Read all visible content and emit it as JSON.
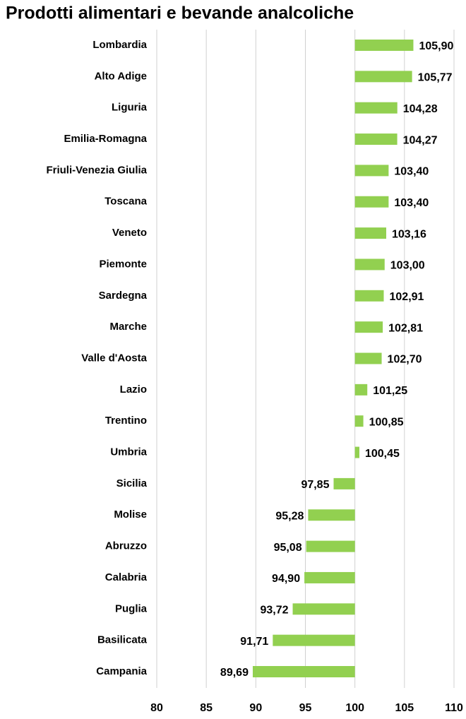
{
  "chart_data": {
    "type": "bar",
    "orientation": "horizontal",
    "title": "Prodotti alimentari e bevande analcoliche",
    "categories": [
      "Lombardia",
      "Alto Adige",
      "Liguria",
      "Emilia-Romagna",
      "Friuli-Venezia Giulia",
      "Toscana",
      "Veneto",
      "Piemonte",
      "Sardegna",
      "Marche",
      "Valle d'Aosta",
      "Lazio",
      "Trentino",
      "Umbria",
      "Sicilia",
      "Molise",
      "Abruzzo",
      "Calabria",
      "Puglia",
      "Basilicata",
      "Campania"
    ],
    "values": [
      105.9,
      105.77,
      104.28,
      104.27,
      103.4,
      103.4,
      103.16,
      103.0,
      102.91,
      102.81,
      102.7,
      101.25,
      100.85,
      100.45,
      97.85,
      95.28,
      95.08,
      94.9,
      93.72,
      91.71,
      89.69
    ],
    "value_labels": [
      "105,90",
      "105,77",
      "104,28",
      "104,27",
      "103,40",
      "103,40",
      "103,16",
      "103,00",
      "102,91",
      "102,81",
      "102,70",
      "101,25",
      "100,85",
      "100,45",
      "97,85",
      "95,28",
      "95,08",
      "94,90",
      "93,72",
      "91,71",
      "89,69"
    ],
    "bar_base": 100,
    "color": "#92d050",
    "xlim": [
      80,
      110
    ],
    "xticks": [
      80,
      85,
      90,
      95,
      100,
      105,
      110
    ],
    "grid": true
  }
}
